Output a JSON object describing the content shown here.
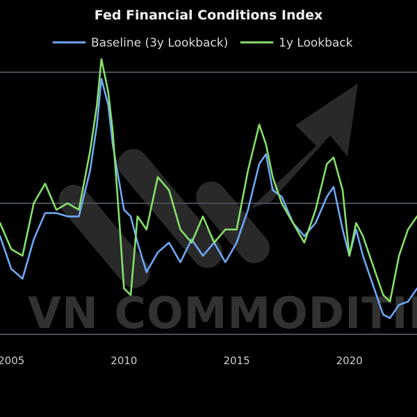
{
  "chart_data": {
    "type": "line",
    "title": "Fed Financial Conditions Index",
    "xlabel": "",
    "ylabel": "",
    "xlim": [
      2004.5,
      2023.0
    ],
    "ylim": [
      -2.2,
      2.2
    ],
    "x_ticks": [
      2005,
      2010,
      2015,
      2020
    ],
    "x_tick_labels": [
      "2005",
      "2010",
      "2015",
      "2020"
    ],
    "y_gridlines": [
      2,
      0,
      -2
    ],
    "legend_position": "top-center",
    "grid": true,
    "series": [
      {
        "name": "Baseline (3y Lookback)",
        "color": "#6fa8f5",
        "x": [
          2004.5,
          2005.0,
          2005.5,
          2006.0,
          2006.5,
          2007.0,
          2007.5,
          2008.0,
          2008.5,
          2008.8,
          2009.0,
          2009.3,
          2009.5,
          2009.8,
          2010.0,
          2010.3,
          2010.6,
          2011.0,
          2011.5,
          2012.0,
          2012.5,
          2013.0,
          2013.5,
          2014.0,
          2014.5,
          2015.0,
          2015.5,
          2016.0,
          2016.3,
          2016.6,
          2017.0,
          2017.5,
          2018.0,
          2018.5,
          2019.0,
          2019.3,
          2019.7,
          2020.0,
          2020.3,
          2020.6,
          2021.0,
          2021.5,
          2021.8,
          2022.2,
          2022.6,
          2023.0
        ],
        "y": [
          -0.5,
          -1.0,
          -1.15,
          -0.55,
          -0.15,
          -0.15,
          -0.2,
          -0.2,
          0.5,
          1.2,
          1.9,
          1.5,
          0.9,
          0.3,
          -0.1,
          -0.2,
          -0.6,
          -1.05,
          -0.75,
          -0.6,
          -0.9,
          -0.55,
          -0.8,
          -0.6,
          -0.9,
          -0.6,
          -0.1,
          0.6,
          0.75,
          0.2,
          0.1,
          -0.3,
          -0.5,
          -0.3,
          0.1,
          0.25,
          -0.4,
          -0.8,
          -0.4,
          -0.8,
          -1.2,
          -1.7,
          -1.75,
          -1.55,
          -1.5,
          -1.3
        ]
      },
      {
        "name": "1y Lookback",
        "color": "#86e06b",
        "x": [
          2004.5,
          2005.0,
          2005.5,
          2006.0,
          2006.5,
          2007.0,
          2007.5,
          2008.0,
          2008.5,
          2008.8,
          2009.0,
          2009.3,
          2009.5,
          2009.8,
          2010.0,
          2010.3,
          2010.6,
          2011.0,
          2011.5,
          2012.0,
          2012.5,
          2013.0,
          2013.5,
          2014.0,
          2014.5,
          2015.0,
          2015.5,
          2016.0,
          2016.3,
          2016.6,
          2017.0,
          2017.5,
          2018.0,
          2018.5,
          2019.0,
          2019.3,
          2019.7,
          2020.0,
          2020.3,
          2020.6,
          2021.0,
          2021.5,
          2021.8,
          2022.2,
          2022.6,
          2023.0
        ],
        "y": [
          -0.3,
          -0.7,
          -0.8,
          0.0,
          0.3,
          -0.1,
          0.0,
          -0.1,
          0.8,
          1.5,
          2.2,
          1.7,
          1.1,
          -0.3,
          -1.3,
          -1.4,
          -0.2,
          -0.4,
          0.4,
          0.2,
          -0.4,
          -0.6,
          -0.2,
          -0.6,
          -0.4,
          -0.4,
          0.5,
          1.2,
          0.9,
          0.4,
          0.0,
          -0.3,
          -0.6,
          -0.1,
          0.6,
          0.7,
          0.2,
          -0.8,
          -0.3,
          -0.5,
          -0.9,
          -1.4,
          -1.5,
          -0.8,
          -0.4,
          -0.2
        ]
      }
    ]
  },
  "watermark": {
    "text": "VN COMMODITIES",
    "color": "#5a5a5a"
  },
  "colors": {
    "background": "#000000",
    "gridline": "#5f6a7a",
    "text": "#e6e6e6"
  }
}
